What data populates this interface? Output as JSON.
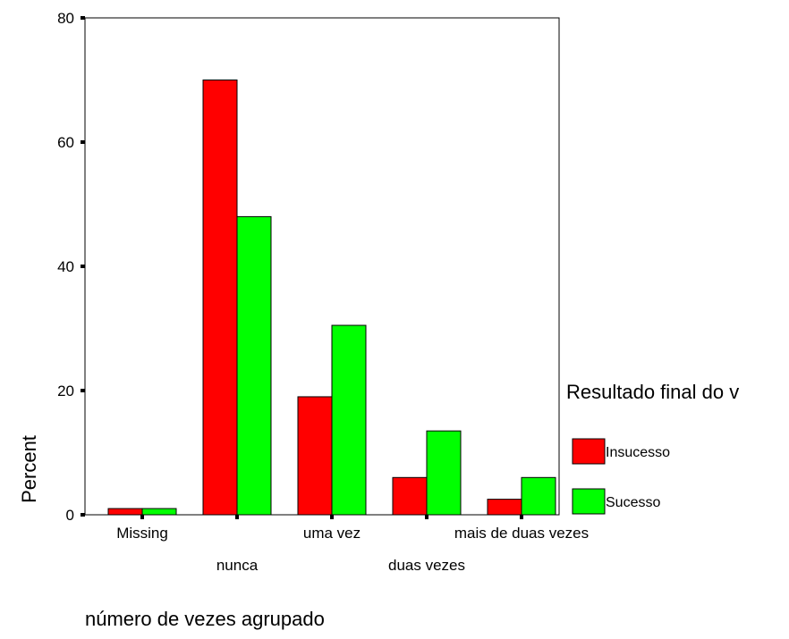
{
  "chart_data": {
    "type": "bar",
    "categories": [
      "Missing",
      "nunca",
      "uma vez",
      "duas vezes",
      "mais de duas vezes"
    ],
    "series": [
      {
        "name": "Insucesso",
        "values": [
          1.0,
          70.0,
          19.0,
          6.0,
          2.5
        ]
      },
      {
        "name": "Sucesso",
        "values": [
          1.0,
          48.0,
          30.5,
          13.5,
          6.0
        ]
      }
    ],
    "xlabel": "número de vezes agrupado",
    "ylabel": "Percent",
    "ylim": [
      0,
      80
    ],
    "yticks": [
      0,
      20,
      40,
      60,
      80
    ],
    "legend_title": "Resultado final do v",
    "legend_position": "right",
    "grid": false
  },
  "colors": {
    "Insucesso": "#ff0000",
    "Sucesso": "#00ff00"
  }
}
